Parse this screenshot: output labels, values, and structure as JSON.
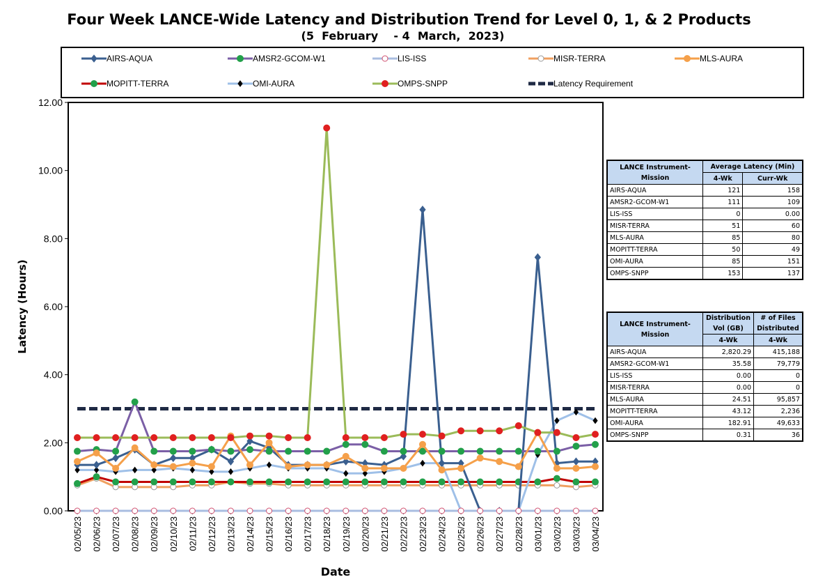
{
  "chart_data": {
    "type": "line",
    "title": "Four Week LANCE-Wide Latency and Distribution Trend for Level 0, 1, & 2 Products",
    "subtitle": "(5  February    - 4  March,  2023)",
    "xlabel": "Date",
    "ylabel": "Latency (Hours)",
    "ylim": [
      0,
      12
    ],
    "yticks": [
      "0.00",
      "2.00",
      "4.00",
      "6.00",
      "8.00",
      "10.00",
      "12.00"
    ],
    "grid": false,
    "legend_position": "top",
    "categories": [
      "02/05/23",
      "02/06/23",
      "02/07/23",
      "02/08/23",
      "02/09/23",
      "02/10/23",
      "02/11/23",
      "02/12/23",
      "02/13/23",
      "02/14/23",
      "02/15/23",
      "02/16/23",
      "02/17/23",
      "02/18/23",
      "02/19/23",
      "02/20/23",
      "02/21/23",
      "02/22/23",
      "02/23/23",
      "02/24/23",
      "02/25/23",
      "02/26/23",
      "02/27/23",
      "02/28/23",
      "03/01/23",
      "03/02/23",
      "03/03/23",
      "03/04/23"
    ],
    "series": [
      {
        "name": "AIRS-AQUA",
        "color": "#3a5f8f",
        "marker": "diamond",
        "values": [
          1.35,
          1.35,
          1.55,
          1.8,
          1.35,
          1.55,
          1.55,
          1.8,
          1.45,
          2.05,
          1.85,
          1.35,
          1.35,
          1.35,
          1.45,
          1.4,
          1.35,
          1.6,
          8.85,
          1.4,
          1.4,
          0.0,
          0.0,
          0.0,
          7.45,
          1.4,
          1.45,
          1.45
        ]
      },
      {
        "name": "AMSR2-GCOM-W1",
        "color": "#7b5fa6",
        "marker": "circle",
        "values": [
          1.75,
          1.8,
          1.75,
          3.2,
          1.75,
          1.75,
          1.75,
          1.8,
          1.75,
          1.8,
          1.75,
          1.75,
          1.75,
          1.75,
          1.95,
          1.95,
          1.75,
          1.75,
          1.75,
          1.75,
          1.75,
          1.75,
          1.75,
          1.75,
          1.75,
          1.75,
          1.9,
          1.95
        ]
      },
      {
        "name": "LIS-ISS",
        "color": "#a9bde0",
        "marker": "circle-open",
        "values": [
          0,
          0,
          0,
          0,
          0,
          0,
          0,
          0,
          0,
          0,
          0,
          0,
          0,
          0,
          0,
          0,
          0,
          0,
          0,
          0,
          0,
          0,
          0,
          0,
          0,
          0,
          0,
          0
        ]
      },
      {
        "name": "MISR-TERRA",
        "color": "#f0a060",
        "marker": "circle-open",
        "values": [
          0.75,
          0.95,
          0.7,
          0.7,
          0.7,
          0.7,
          0.75,
          0.75,
          0.85,
          0.8,
          0.8,
          0.75,
          0.75,
          0.75,
          0.75,
          0.75,
          0.75,
          0.75,
          0.75,
          0.75,
          0.75,
          0.75,
          0.75,
          0.75,
          0.75,
          0.75,
          0.7,
          0.75
        ]
      },
      {
        "name": "MLS-AURA",
        "color": "#f5a04a",
        "marker": "circle",
        "values": [
          1.45,
          1.7,
          1.25,
          1.85,
          1.35,
          1.3,
          1.4,
          1.3,
          2.2,
          1.35,
          2.0,
          1.3,
          1.35,
          1.35,
          1.6,
          1.25,
          1.25,
          1.25,
          1.95,
          1.2,
          1.25,
          1.55,
          1.45,
          1.3,
          2.3,
          1.25,
          1.25,
          1.3
        ]
      },
      {
        "name": "MOPITT-TERRA",
        "color": "#c00000",
        "marker": "circle",
        "values": [
          0.8,
          1.0,
          0.85,
          0.85,
          0.85,
          0.85,
          0.85,
          0.85,
          0.85,
          0.85,
          0.85,
          0.85,
          0.85,
          0.85,
          0.85,
          0.85,
          0.85,
          0.85,
          0.85,
          0.85,
          0.85,
          0.85,
          0.85,
          0.85,
          0.85,
          0.95,
          0.85,
          0.85
        ]
      },
      {
        "name": "OMI-AURA",
        "color": "#9fc0e8",
        "marker": "diamond-small",
        "values": [
          1.2,
          1.2,
          1.15,
          1.2,
          1.2,
          1.25,
          1.2,
          1.15,
          1.15,
          1.25,
          1.35,
          1.25,
          1.25,
          1.25,
          1.1,
          1.1,
          1.15,
          1.25,
          1.4,
          1.4,
          0.0,
          0.0,
          0.0,
          0.0,
          1.65,
          2.65,
          2.9,
          2.65
        ]
      },
      {
        "name": "OMPS-SNPP",
        "color": "#9bbb59",
        "marker": "star",
        "values": [
          2.15,
          2.15,
          2.15,
          2.15,
          2.15,
          2.15,
          2.15,
          2.15,
          2.15,
          2.2,
          2.2,
          2.15,
          2.15,
          11.25,
          2.15,
          2.15,
          2.15,
          2.25,
          2.25,
          2.2,
          2.35,
          2.35,
          2.35,
          2.5,
          2.3,
          2.3,
          2.15,
          2.25
        ]
      },
      {
        "name": "Latency Requirement",
        "color": "#1f2a44",
        "marker": "none",
        "dashed": true,
        "values": [
          3,
          3,
          3,
          3,
          3,
          3,
          3,
          3,
          3,
          3,
          3,
          3,
          3,
          3,
          3,
          3,
          3,
          3,
          3,
          3,
          3,
          3,
          3,
          3,
          3,
          3,
          3,
          3
        ]
      }
    ]
  },
  "table_latency": {
    "header_col1": "LANCE Instrument-Mission",
    "header_group": "Average Latency (Min)",
    "sub1": "4-Wk",
    "sub2": "Curr-Wk",
    "rows": [
      {
        "name": "AIRS-AQUA",
        "v1": "121",
        "v2": "158"
      },
      {
        "name": "AMSR2-GCOM-W1",
        "v1": "111",
        "v2": "109"
      },
      {
        "name": "LIS-ISS",
        "v1": "0",
        "v2": "0.00"
      },
      {
        "name": "MISR-TERRA",
        "v1": "51",
        "v2": "60"
      },
      {
        "name": "MLS-AURA",
        "v1": "85",
        "v2": "80"
      },
      {
        "name": "MOPITT-TERRA",
        "v1": "50",
        "v2": "49"
      },
      {
        "name": "OMI-AURA",
        "v1": "85",
        "v2": "151"
      },
      {
        "name": "OMPS-SNPP",
        "v1": "153",
        "v2": "137"
      }
    ]
  },
  "table_distribution": {
    "header_col1": "LANCE Instrument-Mission",
    "header_col2": "Distribution Vol (GB)",
    "header_col3": "# of Files Distributed",
    "sub1": "4-Wk",
    "sub2": "4-Wk",
    "rows": [
      {
        "name": "AIRS-AQUA",
        "v1": "2,820.29",
        "v2": "415,188"
      },
      {
        "name": "AMSR2-GCOM-W1",
        "v1": "35.58",
        "v2": "79,779"
      },
      {
        "name": "LIS-ISS",
        "v1": "0.00",
        "v2": "0"
      },
      {
        "name": "MISR-TERRA",
        "v1": "0.00",
        "v2": "0"
      },
      {
        "name": "MLS-AURA",
        "v1": "24.51",
        "v2": "95,857"
      },
      {
        "name": "MOPITT-TERRA",
        "v1": "43.12",
        "v2": "2,236"
      },
      {
        "name": "OMI-AURA",
        "v1": "182.91",
        "v2": "49,633"
      },
      {
        "name": "OMPS-SNPP",
        "v1": "0.31",
        "v2": "36"
      }
    ]
  }
}
